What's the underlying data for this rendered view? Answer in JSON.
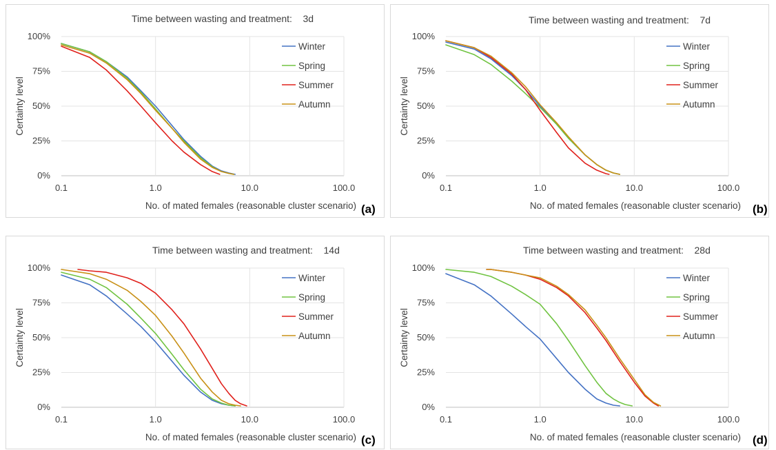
{
  "chart_data": [
    {
      "type": "line",
      "panel_label": "(a)",
      "title": "Time between wasting and treatment:    3d",
      "xlabel": "No. of mated females (reasonable cluster scenario)",
      "ylabel": "Certainty level",
      "xscale": "log",
      "xlim": [
        0.1,
        100
      ],
      "ylim": [
        0,
        1
      ],
      "x_ticks": [
        "0.1",
        "1.0",
        "10.0",
        "100.0"
      ],
      "y_ticks": [
        "0%",
        "25%",
        "50%",
        "75%",
        "100%"
      ],
      "legend": "top-right",
      "series": [
        {
          "name": "Winter",
          "color": "#4472c4",
          "x": [
            0.1,
            0.2,
            0.3,
            0.5,
            0.7,
            1.0,
            1.5,
            2.0,
            3.0,
            4.0,
            5.0,
            6.0,
            7.0
          ],
          "y": [
            0.95,
            0.89,
            0.82,
            0.71,
            0.61,
            0.5,
            0.36,
            0.26,
            0.14,
            0.07,
            0.035,
            0.02,
            0.01
          ]
        },
        {
          "name": "Spring",
          "color": "#70c341",
          "x": [
            0.1,
            0.2,
            0.3,
            0.5,
            0.7,
            1.0,
            1.5,
            2.0,
            3.0,
            4.0,
            5.0,
            6.0,
            6.8
          ],
          "y": [
            0.95,
            0.89,
            0.82,
            0.7,
            0.6,
            0.48,
            0.34,
            0.25,
            0.13,
            0.065,
            0.03,
            0.017,
            0.01
          ]
        },
        {
          "name": "Summer",
          "color": "#e0201b",
          "x": [
            0.1,
            0.2,
            0.3,
            0.5,
            0.7,
            1.0,
            1.5,
            2.0,
            3.0,
            4.0,
            4.8
          ],
          "y": [
            0.93,
            0.85,
            0.76,
            0.61,
            0.5,
            0.38,
            0.25,
            0.17,
            0.08,
            0.03,
            0.01
          ]
        },
        {
          "name": "Autumn",
          "color": "#c89016",
          "x": [
            0.1,
            0.2,
            0.3,
            0.5,
            0.7,
            1.0,
            1.5,
            2.0,
            3.0,
            4.0,
            5.0,
            6.0,
            6.8
          ],
          "y": [
            0.94,
            0.88,
            0.81,
            0.69,
            0.59,
            0.47,
            0.34,
            0.24,
            0.12,
            0.06,
            0.03,
            0.017,
            0.01
          ]
        }
      ]
    },
    {
      "type": "line",
      "panel_label": "(b)",
      "title": "Time between wasting and treatment:    7d",
      "xlabel": "No. of mated females (reasonable cluster scenario)",
      "ylabel": "Certainty level",
      "xscale": "log",
      "xlim": [
        0.1,
        100
      ],
      "ylim": [
        0,
        1
      ],
      "x_ticks": [
        "0.1",
        "1.0",
        "10.0",
        "100.0"
      ],
      "y_ticks": [
        "0%",
        "25%",
        "50%",
        "75%",
        "100%"
      ],
      "legend": "top-right",
      "series": [
        {
          "name": "Winter",
          "color": "#4472c4",
          "x": [
            0.1,
            0.2,
            0.3,
            0.5,
            0.7,
            1.0,
            1.5,
            2.0,
            3.0,
            4.0,
            5.0,
            6.0,
            7.0
          ],
          "y": [
            0.96,
            0.91,
            0.84,
            0.72,
            0.62,
            0.5,
            0.37,
            0.27,
            0.15,
            0.08,
            0.04,
            0.02,
            0.01
          ]
        },
        {
          "name": "Spring",
          "color": "#70c341",
          "x": [
            0.1,
            0.2,
            0.3,
            0.5,
            0.7,
            1.0,
            1.5,
            2.0,
            3.0,
            4.0,
            5.0,
            6.0,
            7.0
          ],
          "y": [
            0.94,
            0.87,
            0.8,
            0.68,
            0.59,
            0.49,
            0.37,
            0.27,
            0.15,
            0.08,
            0.04,
            0.02,
            0.01
          ]
        },
        {
          "name": "Summer",
          "color": "#e0201b",
          "x": [
            0.1,
            0.2,
            0.3,
            0.5,
            0.7,
            1.0,
            1.5,
            2.0,
            3.0,
            4.0,
            5.0,
            5.4
          ],
          "y": [
            0.97,
            0.92,
            0.85,
            0.73,
            0.62,
            0.47,
            0.31,
            0.2,
            0.09,
            0.04,
            0.015,
            0.01
          ]
        },
        {
          "name": "Autumn",
          "color": "#c89016",
          "x": [
            0.1,
            0.2,
            0.3,
            0.5,
            0.7,
            1.0,
            1.5,
            2.0,
            3.0,
            4.0,
            5.0,
            6.0,
            7.0
          ],
          "y": [
            0.97,
            0.92,
            0.86,
            0.74,
            0.64,
            0.51,
            0.38,
            0.28,
            0.15,
            0.08,
            0.04,
            0.02,
            0.01
          ]
        }
      ]
    },
    {
      "type": "line",
      "panel_label": "(c)",
      "title": "Time between wasting and treatment:    14d",
      "xlabel": "No. of mated females (reasonable cluster scenario)",
      "ylabel": "Certainty level",
      "xscale": "log",
      "xlim": [
        0.1,
        100
      ],
      "ylim": [
        0,
        1
      ],
      "x_ticks": [
        "0.1",
        "1.0",
        "10.0",
        "100.0"
      ],
      "y_ticks": [
        "0%",
        "25%",
        "50%",
        "75%",
        "100%"
      ],
      "legend": "top-right",
      "series": [
        {
          "name": "Winter",
          "color": "#4472c4",
          "x": [
            0.1,
            0.2,
            0.3,
            0.5,
            0.7,
            1.0,
            1.5,
            2.0,
            3.0,
            4.0,
            5.0,
            6.0,
            7.0
          ],
          "y": [
            0.95,
            0.88,
            0.8,
            0.67,
            0.58,
            0.47,
            0.33,
            0.23,
            0.11,
            0.05,
            0.025,
            0.015,
            0.01
          ]
        },
        {
          "name": "Spring",
          "color": "#70c341",
          "x": [
            0.1,
            0.2,
            0.3,
            0.5,
            0.7,
            1.0,
            1.5,
            2.0,
            3.0,
            4.0,
            5.0,
            6.0,
            7.0
          ],
          "y": [
            0.97,
            0.92,
            0.86,
            0.74,
            0.64,
            0.53,
            0.38,
            0.27,
            0.13,
            0.06,
            0.03,
            0.015,
            0.01
          ]
        },
        {
          "name": "Summer",
          "color": "#e0201b",
          "x": [
            0.15,
            0.2,
            0.3,
            0.5,
            0.7,
            1.0,
            1.5,
            2.0,
            3.0,
            4.0,
            5.0,
            6.0,
            7.0,
            8.0,
            9.3
          ],
          "y": [
            0.99,
            0.98,
            0.97,
            0.93,
            0.89,
            0.82,
            0.7,
            0.6,
            0.42,
            0.28,
            0.17,
            0.1,
            0.05,
            0.025,
            0.01
          ]
        },
        {
          "name": "Autumn",
          "color": "#c89016",
          "x": [
            0.1,
            0.2,
            0.3,
            0.5,
            0.7,
            1.0,
            1.5,
            2.0,
            3.0,
            4.0,
            5.0,
            6.0,
            7.0,
            8.0
          ],
          "y": [
            0.99,
            0.96,
            0.92,
            0.84,
            0.76,
            0.66,
            0.51,
            0.39,
            0.21,
            0.11,
            0.05,
            0.025,
            0.015,
            0.01
          ]
        }
      ]
    },
    {
      "type": "line",
      "panel_label": "(d)",
      "title": "Time between wasting and treatment:    28d",
      "xlabel": "No. of mated females (reasonable cluster scenario)",
      "ylabel": "Certainty level",
      "xscale": "log",
      "xlim": [
        0.1,
        100
      ],
      "ylim": [
        0,
        1
      ],
      "x_ticks": [
        "0.1",
        "1.0",
        "10.0",
        "100.0"
      ],
      "y_ticks": [
        "0%",
        "25%",
        "50%",
        "75%",
        "100%"
      ],
      "legend": "top-right",
      "series": [
        {
          "name": "Winter",
          "color": "#4472c4",
          "x": [
            0.1,
            0.2,
            0.3,
            0.5,
            0.7,
            1.0,
            1.5,
            2.0,
            3.0,
            4.0,
            5.0,
            6.0,
            7.0
          ],
          "y": [
            0.96,
            0.88,
            0.8,
            0.67,
            0.58,
            0.49,
            0.35,
            0.25,
            0.13,
            0.06,
            0.03,
            0.015,
            0.01
          ]
        },
        {
          "name": "Spring",
          "color": "#70c341",
          "x": [
            0.1,
            0.2,
            0.3,
            0.5,
            0.7,
            1.0,
            1.5,
            2.0,
            3.0,
            4.0,
            5.0,
            6.0,
            7.0,
            8.0,
            9.5
          ],
          "y": [
            0.99,
            0.97,
            0.94,
            0.87,
            0.81,
            0.74,
            0.6,
            0.48,
            0.3,
            0.18,
            0.1,
            0.06,
            0.035,
            0.02,
            0.01
          ]
        },
        {
          "name": "Summer",
          "color": "#e0201b",
          "x": [
            0.27,
            0.3,
            0.5,
            0.7,
            1.0,
            1.5,
            2.0,
            3.0,
            4.0,
            5.0,
            7.0,
            10.0,
            13.0,
            16.0,
            18.0
          ],
          "y": [
            0.99,
            0.99,
            0.97,
            0.95,
            0.92,
            0.86,
            0.8,
            0.68,
            0.57,
            0.48,
            0.33,
            0.18,
            0.08,
            0.03,
            0.01
          ]
        },
        {
          "name": "Autumn",
          "color": "#c89016",
          "x": [
            0.27,
            0.3,
            0.5,
            0.7,
            1.0,
            1.5,
            2.0,
            3.0,
            4.0,
            5.0,
            7.0,
            10.0,
            13.0,
            16.0,
            19.0
          ],
          "y": [
            0.99,
            0.99,
            0.97,
            0.95,
            0.93,
            0.87,
            0.81,
            0.7,
            0.59,
            0.5,
            0.35,
            0.2,
            0.09,
            0.035,
            0.01
          ]
        }
      ]
    }
  ]
}
